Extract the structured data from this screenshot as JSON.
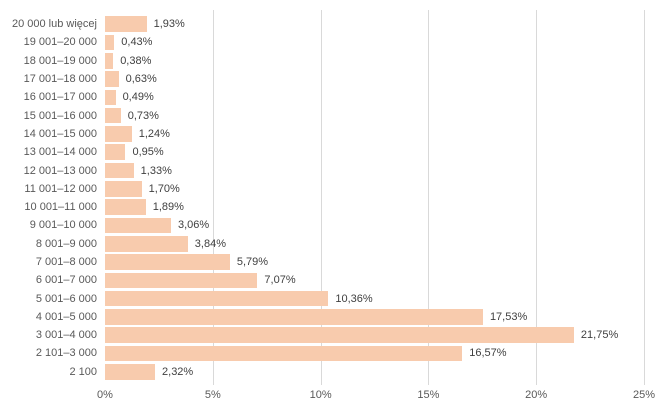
{
  "chart_data": {
    "type": "bar",
    "orientation": "horizontal",
    "title": "",
    "xlabel": "",
    "ylabel": "",
    "categories": [
      "20 000 lub więcej",
      "19 001–20 000",
      "18 001–19 000",
      "17 001–18 000",
      "16 001–17 000",
      "15 001–16 000",
      "14 001–15 000",
      "13 001–14 000",
      "12 001–13 000",
      "11 001–12 000",
      "10 001–11 000",
      "9 001–10 000",
      "8 001–9 000",
      "7 001–8 000",
      "6 001–7 000",
      "5 001–6 000",
      "4 001–5 000",
      "3 001–4 000",
      "2 101–3 000",
      "2 100"
    ],
    "values": [
      1.93,
      0.43,
      0.38,
      0.63,
      0.49,
      0.73,
      1.24,
      0.95,
      1.33,
      1.7,
      1.89,
      3.06,
      3.84,
      5.79,
      7.07,
      10.36,
      17.53,
      21.75,
      16.57,
      2.32
    ],
    "value_labels": [
      "1,93%",
      "0,43%",
      "0,38%",
      "0,63%",
      "0,49%",
      "0,73%",
      "1,24%",
      "0,95%",
      "1,33%",
      "1,70%",
      "1,89%",
      "3,06%",
      "3,84%",
      "5,79%",
      "7,07%",
      "10,36%",
      "17,53%",
      "21,75%",
      "16,57%",
      "2,32%"
    ],
    "x_ticks": [
      "0%",
      "5%",
      "10%",
      "15%",
      "20%",
      "25%"
    ],
    "xlim": [
      0,
      25
    ],
    "grid": true,
    "legend": false,
    "bar_color": "#f8cbad",
    "gridline_color": "#d9d9d9",
    "axis_text_color": "#595959",
    "label_text_color": "#404040",
    "background_color": "#ffffff"
  }
}
